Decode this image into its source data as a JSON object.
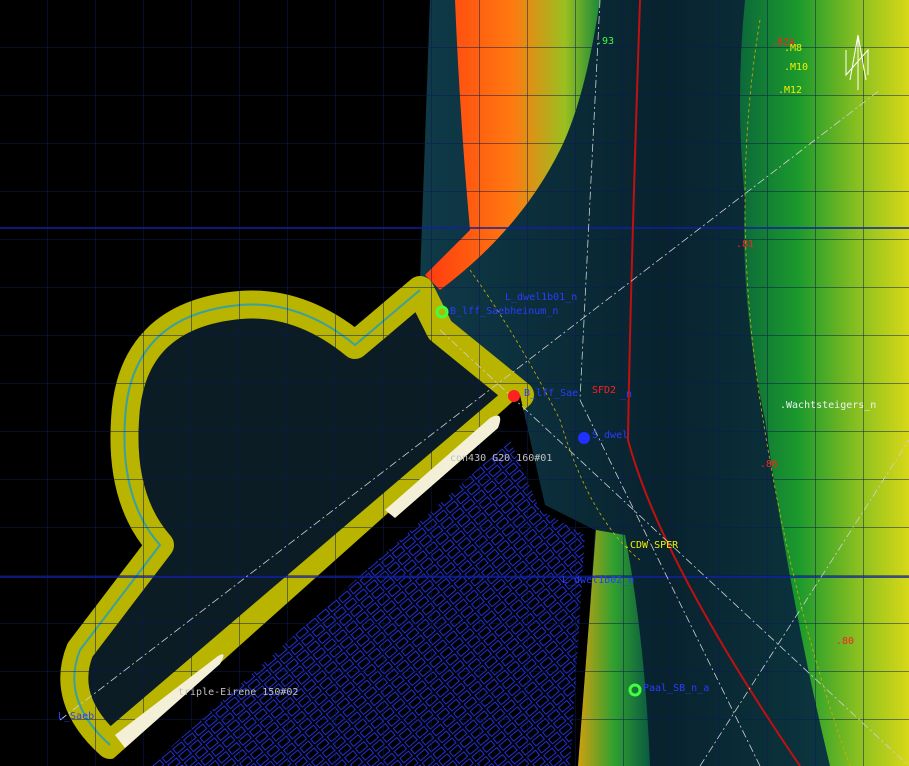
{
  "labels": [
    ".93",
    ".82A",
    ".M8",
    ".M10",
    ".M12",
    ".81",
    "L_dwel1b01_n",
    "B_lff_Saebheinum_n",
    "SFD2",
    "B_lff_Sae",
    "_n",
    "S_dwel",
    "con430 G20 160#01",
    ".Wachtsteigers_n",
    ".86",
    ".CDW SPER",
    "L_dwel1b02_n",
    ".80",
    "Paal_SB_n_a",
    "triple-Eirene 150#02",
    "L_Saeb"
  ]
}
